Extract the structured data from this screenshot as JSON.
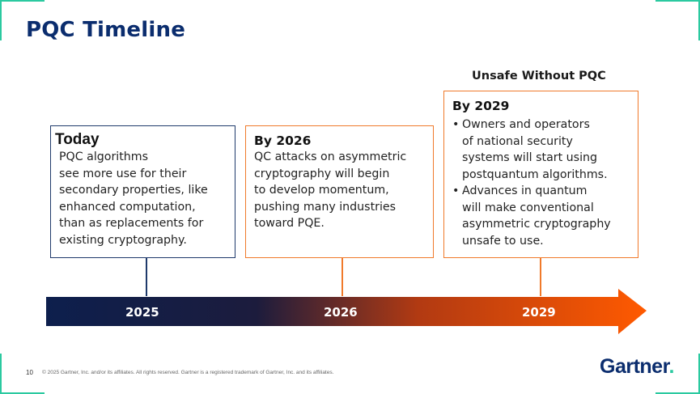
{
  "title": "PQC Timeline",
  "callout": "Unsafe Without PQC",
  "boxes": {
    "today": {
      "heading": "Today",
      "body": "PQC algorithms\nsee more use for their\nsecondary properties, like\nenhanced computation,\nthan as replacements for\nexisting cryptography."
    },
    "y2026": {
      "heading": "By 2026",
      "body": "QC attacks on asymmetric\ncryptography will begin\nto develop momentum,\npushing many industries\ntoward PQE."
    },
    "y2029": {
      "heading": "By 2029",
      "bullets": [
        "Owners and operators\nof national security\nsystems will start using\npostquantum algorithms.",
        "Advances in quantum\nwill make conventional\nasymmetric cryptography\nunsafe to use."
      ]
    }
  },
  "timeline": {
    "years": [
      "2025",
      "2026",
      "2029"
    ],
    "gradient_colors": [
      "#0d1f4d",
      "#ff5a00"
    ]
  },
  "footer": {
    "page_number": "10",
    "copyright": "© 2025 Gartner, Inc. and/or its affiliates. All rights reserved. Gartner is a registered trademark of Gartner, Inc. and its affiliates."
  },
  "logo": {
    "text": "Gartner",
    "dot": "."
  },
  "colors": {
    "accent": "#2bc9a0",
    "navy": "#0b2d6e",
    "orange": "#f07a2b"
  }
}
